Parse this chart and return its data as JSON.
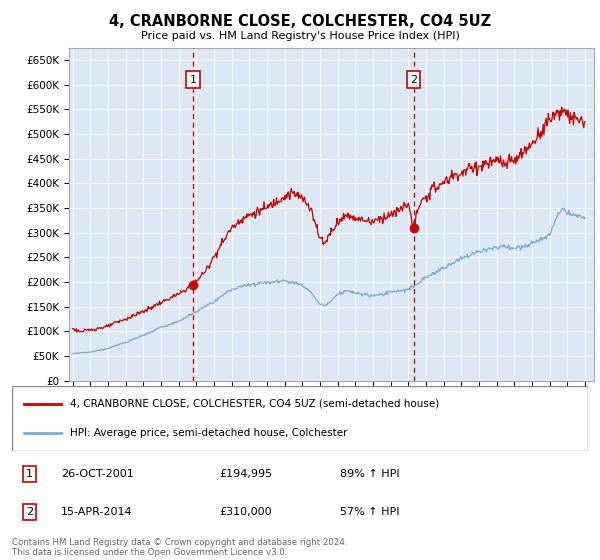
{
  "title": "4, CRANBORNE CLOSE, COLCHESTER, CO4 5UZ",
  "subtitle": "Price paid vs. HM Land Registry's House Price Index (HPI)",
  "plot_bg_color": "#dce8f5",
  "red_line_color": "#cc0000",
  "blue_line_color": "#7aaed6",
  "annotation_color": "#cc0000",
  "grid_color": "#ffffff",
  "ylim": [
    0,
    675000
  ],
  "yticks": [
    0,
    50000,
    100000,
    150000,
    200000,
    250000,
    300000,
    350000,
    400000,
    450000,
    500000,
    550000,
    600000,
    650000
  ],
  "xlim_start": 1994.8,
  "xlim_end": 2024.5,
  "transactions": [
    {
      "date_decimal": 2001.82,
      "price": 194995,
      "label": "1"
    },
    {
      "date_decimal": 2014.29,
      "price": 310000,
      "label": "2"
    }
  ],
  "legend_entries": [
    "4, CRANBORNE CLOSE, COLCHESTER, CO4 5UZ (semi-detached house)",
    "HPI: Average price, semi-detached house, Colchester"
  ],
  "table_entries": [
    {
      "num": "1",
      "date": "26-OCT-2001",
      "price": "£194,995",
      "pct": "89% ↑ HPI"
    },
    {
      "num": "2",
      "date": "15-APR-2014",
      "price": "£310,000",
      "pct": "57% ↑ HPI"
    }
  ],
  "footer": "Contains HM Land Registry data © Crown copyright and database right 2024.\nThis data is licensed under the Open Government Licence v3.0."
}
